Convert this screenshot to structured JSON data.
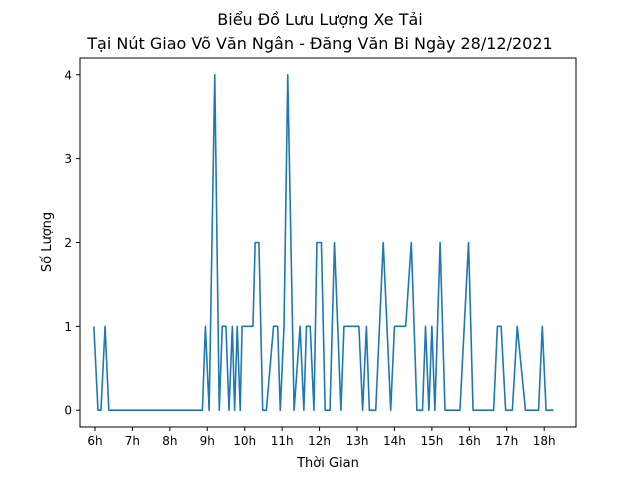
{
  "chart_data": {
    "type": "line",
    "title": "Biểu Đồ Lưu Lượng Xe Tải",
    "subtitle": "Tại Nút Giao Võ Văn Ngân - Đăng Văn Bi Ngày 28/12/2021",
    "xlabel": "Thời Gian",
    "ylabel": "Số Lượng",
    "x_ticks": [
      {
        "value": 6,
        "label": "6h"
      },
      {
        "value": 7,
        "label": "7h"
      },
      {
        "value": 8,
        "label": "8h"
      },
      {
        "value": 9,
        "label": "9h"
      },
      {
        "value": 10,
        "label": "10h"
      },
      {
        "value": 11,
        "label": "11h"
      },
      {
        "value": 12,
        "label": "12h"
      },
      {
        "value": 13,
        "label": "13h"
      },
      {
        "value": 14,
        "label": "14h"
      },
      {
        "value": 15,
        "label": "15h"
      },
      {
        "value": 16,
        "label": "16h"
      },
      {
        "value": 17,
        "label": "17h"
      },
      {
        "value": 18,
        "label": "18h"
      }
    ],
    "y_ticks": [
      0,
      1,
      2,
      3,
      4
    ],
    "xlim": [
      5.6,
      18.85
    ],
    "ylim": [
      -0.2,
      4.2
    ],
    "grid": false,
    "series": [
      {
        "color": "#1f77b4",
        "x": [
          5.97,
          6.08,
          6.16,
          6.27,
          6.37,
          6.5,
          7.0,
          7.5,
          8.0,
          8.5,
          8.87,
          8.95,
          9.05,
          9.2,
          9.32,
          9.4,
          9.5,
          9.58,
          9.67,
          9.73,
          9.8,
          9.88,
          9.93,
          10.0,
          10.08,
          10.15,
          10.22,
          10.28,
          10.38,
          10.48,
          10.58,
          10.77,
          10.88,
          10.95,
          11.05,
          11.15,
          11.32,
          11.48,
          11.58,
          11.65,
          11.75,
          11.85,
          11.93,
          12.05,
          12.15,
          12.28,
          12.4,
          12.57,
          12.65,
          12.75,
          12.85,
          13.05,
          13.15,
          13.25,
          13.33,
          13.5,
          13.7,
          13.9,
          14.0,
          14.3,
          14.45,
          14.6,
          14.75,
          14.83,
          14.92,
          15.0,
          15.08,
          15.22,
          15.35,
          15.5,
          15.75,
          15.98,
          16.1,
          16.5,
          16.65,
          16.75,
          16.85,
          16.97,
          17.15,
          17.28,
          17.5,
          17.75,
          17.85,
          17.95,
          18.05,
          18.25
        ],
        "y": [
          1,
          0,
          0,
          1,
          0,
          0,
          0,
          0,
          0,
          0,
          0,
          1,
          0,
          4,
          0,
          1,
          1,
          0,
          1,
          0,
          1,
          0,
          1,
          1,
          1,
          1,
          1,
          2,
          2,
          0,
          0,
          1,
          1,
          0,
          1,
          4,
          0,
          1,
          0,
          1,
          1,
          0,
          2,
          2,
          0,
          0,
          2,
          0,
          1,
          1,
          1,
          1,
          0,
          1,
          0,
          0,
          2,
          0,
          1,
          1,
          2,
          0,
          0,
          1,
          0,
          1,
          0,
          2,
          0,
          0,
          0,
          2,
          0,
          0,
          0,
          1,
          1,
          0,
          0,
          1,
          0,
          0,
          0,
          1,
          0,
          0
        ]
      }
    ]
  }
}
